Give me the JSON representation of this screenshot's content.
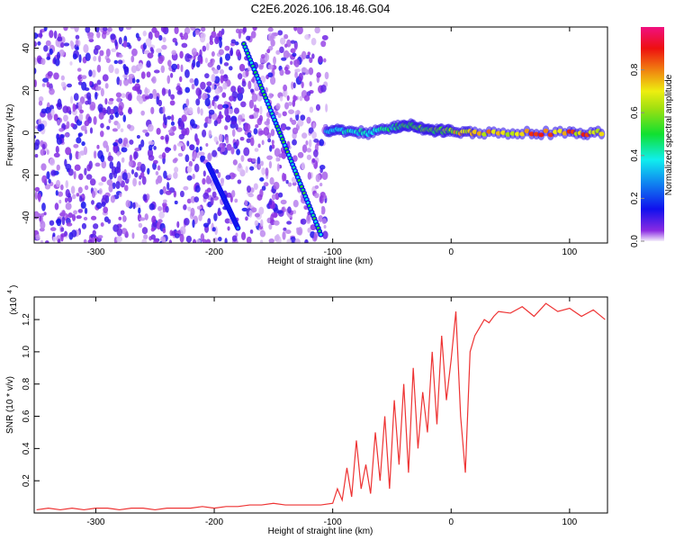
{
  "chart_data": [
    {
      "type": "heatmap",
      "title": "C2E6.2026.106.18.46.G04",
      "xlabel": "Height of straight line (km)",
      "ylabel": "Frequency (Hz)",
      "xlim": [
        -352,
        132
      ],
      "ylim": [
        -52,
        50
      ],
      "xticks": [
        -300,
        -200,
        -100,
        0,
        100
      ],
      "yticks": [
        -40,
        -20,
        0,
        20,
        40
      ],
      "colorbar": {
        "label": "Normalized spectral amplitude",
        "range": [
          0,
          1
        ],
        "ticks": [
          "0.0",
          "0.2",
          "0.4",
          "0.6",
          "0.8"
        ]
      },
      "ridges": [
        {
          "x": [
            -175,
            -110
          ],
          "y": [
            42,
            -48
          ],
          "amplitude": 0.45
        },
        {
          "x": [
            -205,
            -180
          ],
          "y": [
            -15,
            -45
          ],
          "amplitude": 0.3
        }
      ],
      "carrier_band": {
        "x": [
          -105,
          -90,
          -70,
          -50,
          -40,
          -30,
          -20,
          -10,
          0,
          20,
          60,
          100,
          130
        ],
        "y": [
          1,
          1,
          0,
          2,
          4,
          3,
          1,
          1,
          1,
          0,
          0,
          0,
          0
        ],
        "amplitude": [
          0.4,
          0.45,
          0.5,
          0.55,
          0.6,
          0.6,
          0.65,
          0.7,
          0.8,
          0.85,
          0.9,
          0.9,
          0.9
        ]
      },
      "noise_region_x": [
        -352,
        -105
      ]
    },
    {
      "type": "line",
      "xlabel": "Height of straight line (km)",
      "ylabel": "SNR (10 * v/v)",
      "y_multiplier": "(x10",
      "y_multiplier_exp": "4",
      "xlim": [
        -352,
        132
      ],
      "ylim": [
        0,
        1.34
      ],
      "xticks": [
        -300,
        -200,
        -100,
        0,
        100
      ],
      "yticks": [
        0.2,
        0.4,
        0.6,
        0.8,
        1.0,
        1.2
      ],
      "color": "#ee3333",
      "x": [
        -350,
        -340,
        -330,
        -320,
        -310,
        -300,
        -290,
        -280,
        -270,
        -260,
        -250,
        -240,
        -230,
        -220,
        -210,
        -200,
        -190,
        -180,
        -170,
        -160,
        -150,
        -140,
        -130,
        -120,
        -110,
        -100,
        -96,
        -92,
        -88,
        -84,
        -80,
        -76,
        -72,
        -68,
        -64,
        -60,
        -56,
        -52,
        -48,
        -44,
        -40,
        -36,
        -32,
        -28,
        -24,
        -20,
        -16,
        -12,
        -8,
        -4,
        0,
        4,
        8,
        12,
        16,
        20,
        24,
        28,
        32,
        36,
        40,
        50,
        60,
        70,
        80,
        90,
        100,
        110,
        120,
        130
      ],
      "y": [
        0.02,
        0.03,
        0.02,
        0.03,
        0.02,
        0.03,
        0.03,
        0.02,
        0.03,
        0.03,
        0.02,
        0.03,
        0.03,
        0.03,
        0.04,
        0.03,
        0.04,
        0.04,
        0.05,
        0.05,
        0.06,
        0.05,
        0.05,
        0.05,
        0.05,
        0.06,
        0.15,
        0.08,
        0.28,
        0.1,
        0.45,
        0.15,
        0.3,
        0.12,
        0.5,
        0.2,
        0.6,
        0.15,
        0.7,
        0.3,
        0.8,
        0.25,
        0.9,
        0.4,
        0.75,
        0.5,
        1.0,
        0.55,
        1.1,
        0.7,
        0.95,
        1.25,
        0.6,
        0.25,
        1.0,
        1.1,
        1.15,
        1.2,
        1.18,
        1.22,
        1.25,
        1.24,
        1.28,
        1.22,
        1.3,
        1.25,
        1.27,
        1.22,
        1.26,
        1.2
      ]
    }
  ]
}
